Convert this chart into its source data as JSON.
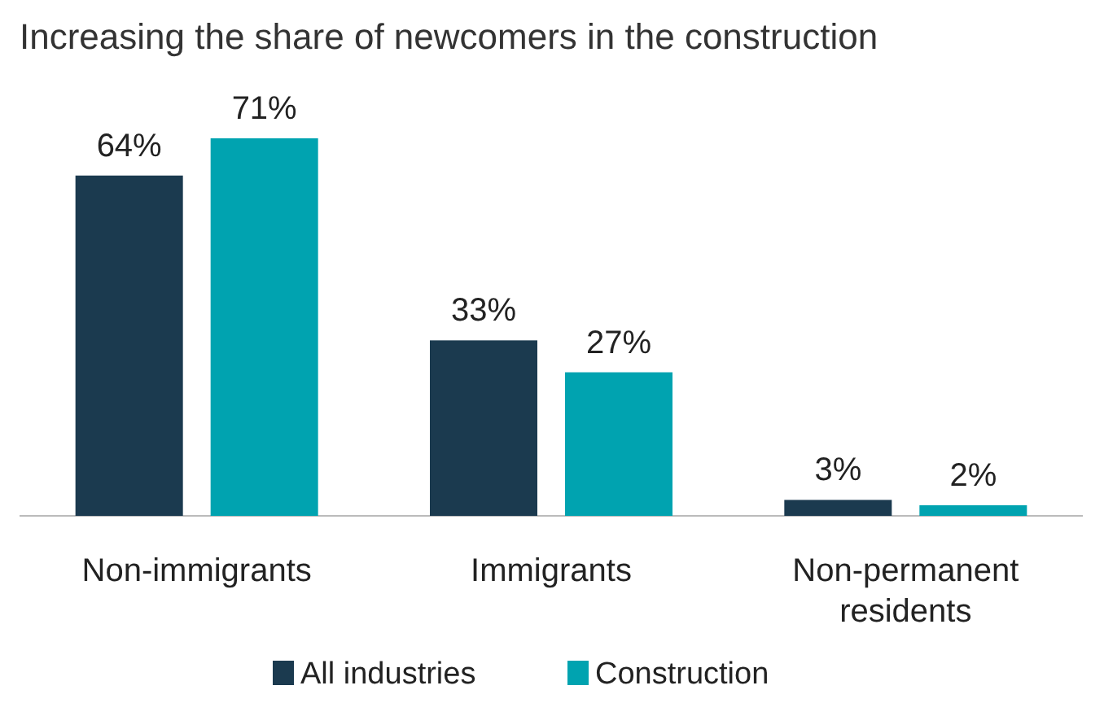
{
  "chart_data": {
    "type": "bar",
    "title": "Increasing the share of newcomers in the construction",
    "categories": [
      "Non-immigrants",
      "Immigrants",
      "Non-permanent residents"
    ],
    "series": [
      {
        "name": "All industries",
        "color": "#1b3a4f",
        "values": [
          64,
          33,
          3
        ],
        "value_labels": [
          "64%",
          "33%",
          "3%"
        ]
      },
      {
        "name": "Construction",
        "color": "#00a3b0",
        "values": [
          71,
          27,
          2
        ],
        "value_labels": [
          "71%",
          "27%",
          "2%"
        ]
      }
    ],
    "legend": "bottom"
  }
}
